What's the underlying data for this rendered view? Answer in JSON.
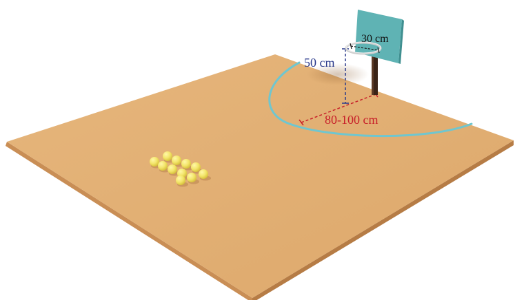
{
  "labels": {
    "hoop_height": "50 cm",
    "hoop_diameter": "30 cm",
    "throw_distance": "80-100 cm"
  },
  "colors": {
    "floor_top": "#E2AF73",
    "floor_edge": "#C98E55",
    "arc": "#6FC6CF",
    "backboard": "#5FB3B4",
    "pole": "#3A2418",
    "height_dim": "#2B3A8C",
    "distance_dim": "#C8202A",
    "ball": "#F3E56A",
    "ball_shade": "#D9C23A",
    "rim": "#D9D9D9"
  },
  "balls": {
    "count": 11
  }
}
